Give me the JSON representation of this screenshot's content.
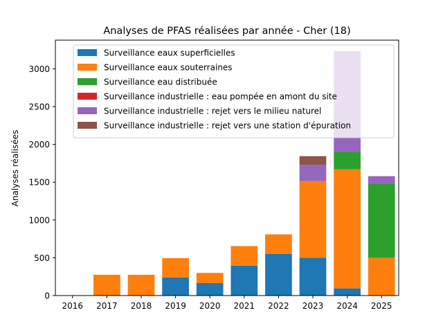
{
  "chart_data": {
    "type": "bar",
    "stacked": true,
    "title": "Analyses de PFAS réalisées par année - Cher (18)",
    "xlabel": "",
    "ylabel": "Analyses réalisées",
    "categories": [
      "2016",
      "2017",
      "2018",
      "2019",
      "2020",
      "2021",
      "2022",
      "2023",
      "2024",
      "2025"
    ],
    "ylim": [
      0,
      3380
    ],
    "yticks": [
      0,
      500,
      1000,
      1500,
      2000,
      2500,
      3000
    ],
    "grid": false,
    "legend_position": "top-left",
    "series": [
      {
        "name": "Surveillance eaux superficielles",
        "color": "#1f77b4",
        "values": [
          0,
          0,
          0,
          240,
          165,
          395,
          550,
          500,
          95,
          0
        ]
      },
      {
        "name": "Surveillance eaux souterraines",
        "color": "#ff7f0e",
        "values": [
          0,
          275,
          275,
          255,
          135,
          260,
          260,
          1015,
          1575,
          500
        ]
      },
      {
        "name": "Surveillance eau distribuée",
        "color": "#2ca02c",
        "values": [
          0,
          0,
          0,
          0,
          0,
          0,
          0,
          0,
          230,
          980
        ]
      },
      {
        "name": "Surveillance industrielle : eau pompée en amont du site",
        "color": "#d62728",
        "values": [
          0,
          0,
          0,
          0,
          0,
          0,
          0,
          0,
          0,
          0
        ]
      },
      {
        "name": "Surveillance industrielle : rejet vers le milieu naturel",
        "color": "#9467bd",
        "values": [
          0,
          0,
          0,
          0,
          0,
          0,
          0,
          215,
          1335,
          100
        ]
      },
      {
        "name": "Surveillance industrielle : rejet vers une station d'épuration",
        "color": "#8c564b",
        "values": [
          0,
          0,
          0,
          0,
          0,
          0,
          0,
          115,
          0,
          0
        ]
      }
    ]
  }
}
